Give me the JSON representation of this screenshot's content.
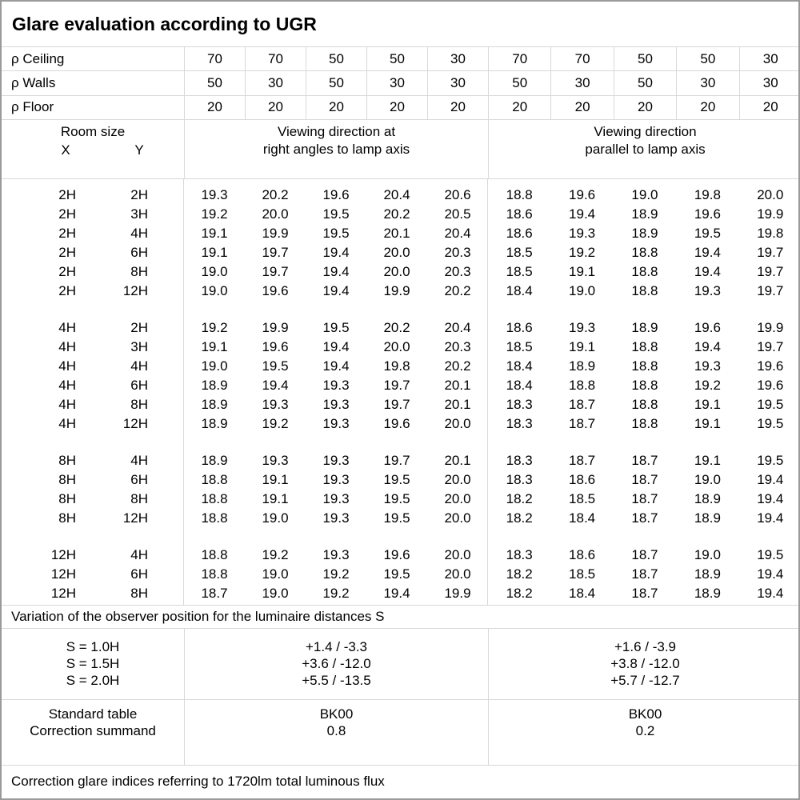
{
  "title": "Glare evaluation according to UGR",
  "reflectances": [
    {
      "label": "ρ Ceiling",
      "values": [
        "70",
        "70",
        "50",
        "50",
        "30",
        "70",
        "70",
        "50",
        "50",
        "30"
      ]
    },
    {
      "label": "ρ Walls",
      "values": [
        "50",
        "30",
        "50",
        "30",
        "30",
        "50",
        "30",
        "50",
        "30",
        "30"
      ]
    },
    {
      "label": "ρ Floor",
      "values": [
        "20",
        "20",
        "20",
        "20",
        "20",
        "20",
        "20",
        "20",
        "20",
        "20"
      ]
    }
  ],
  "header": {
    "room_size_label": "Room size",
    "x_label": "X",
    "y_label": "Y",
    "group_right_angles": {
      "line1": "Viewing direction at",
      "line2": "right angles to lamp axis"
    },
    "group_parallel": {
      "line1": "Viewing direction",
      "line2": "parallel to lamp axis"
    }
  },
  "ugr_table": {
    "type": "table",
    "blocks": [
      {
        "rows": [
          {
            "x": "2H",
            "y": "2H",
            "ra": [
              "19.3",
              "20.2",
              "19.6",
              "20.4",
              "20.6"
            ],
            "pa": [
              "18.8",
              "19.6",
              "19.0",
              "19.8",
              "20.0"
            ]
          },
          {
            "x": "2H",
            "y": "3H",
            "ra": [
              "19.2",
              "20.0",
              "19.5",
              "20.2",
              "20.5"
            ],
            "pa": [
              "18.6",
              "19.4",
              "18.9",
              "19.6",
              "19.9"
            ]
          },
          {
            "x": "2H",
            "y": "4H",
            "ra": [
              "19.1",
              "19.9",
              "19.5",
              "20.1",
              "20.4"
            ],
            "pa": [
              "18.6",
              "19.3",
              "18.9",
              "19.5",
              "19.8"
            ]
          },
          {
            "x": "2H",
            "y": "6H",
            "ra": [
              "19.1",
              "19.7",
              "19.4",
              "20.0",
              "20.3"
            ],
            "pa": [
              "18.5",
              "19.2",
              "18.8",
              "19.4",
              "19.7"
            ]
          },
          {
            "x": "2H",
            "y": "8H",
            "ra": [
              "19.0",
              "19.7",
              "19.4",
              "20.0",
              "20.3"
            ],
            "pa": [
              "18.5",
              "19.1",
              "18.8",
              "19.4",
              "19.7"
            ]
          },
          {
            "x": "2H",
            "y": "12H",
            "ra": [
              "19.0",
              "19.6",
              "19.4",
              "19.9",
              "20.2"
            ],
            "pa": [
              "18.4",
              "19.0",
              "18.8",
              "19.3",
              "19.7"
            ]
          }
        ]
      },
      {
        "rows": [
          {
            "x": "4H",
            "y": "2H",
            "ra": [
              "19.2",
              "19.9",
              "19.5",
              "20.2",
              "20.4"
            ],
            "pa": [
              "18.6",
              "19.3",
              "18.9",
              "19.6",
              "19.9"
            ]
          },
          {
            "x": "4H",
            "y": "3H",
            "ra": [
              "19.1",
              "19.6",
              "19.4",
              "20.0",
              "20.3"
            ],
            "pa": [
              "18.5",
              "19.1",
              "18.8",
              "19.4",
              "19.7"
            ]
          },
          {
            "x": "4H",
            "y": "4H",
            "ra": [
              "19.0",
              "19.5",
              "19.4",
              "19.8",
              "20.2"
            ],
            "pa": [
              "18.4",
              "18.9",
              "18.8",
              "19.3",
              "19.6"
            ]
          },
          {
            "x": "4H",
            "y": "6H",
            "ra": [
              "18.9",
              "19.4",
              "19.3",
              "19.7",
              "20.1"
            ],
            "pa": [
              "18.4",
              "18.8",
              "18.8",
              "19.2",
              "19.6"
            ]
          },
          {
            "x": "4H",
            "y": "8H",
            "ra": [
              "18.9",
              "19.3",
              "19.3",
              "19.7",
              "20.1"
            ],
            "pa": [
              "18.3",
              "18.7",
              "18.8",
              "19.1",
              "19.5"
            ]
          },
          {
            "x": "4H",
            "y": "12H",
            "ra": [
              "18.9",
              "19.2",
              "19.3",
              "19.6",
              "20.0"
            ],
            "pa": [
              "18.3",
              "18.7",
              "18.8",
              "19.1",
              "19.5"
            ]
          }
        ]
      },
      {
        "rows": [
          {
            "x": "8H",
            "y": "4H",
            "ra": [
              "18.9",
              "19.3",
              "19.3",
              "19.7",
              "20.1"
            ],
            "pa": [
              "18.3",
              "18.7",
              "18.7",
              "19.1",
              "19.5"
            ]
          },
          {
            "x": "8H",
            "y": "6H",
            "ra": [
              "18.8",
              "19.1",
              "19.3",
              "19.5",
              "20.0"
            ],
            "pa": [
              "18.3",
              "18.6",
              "18.7",
              "19.0",
              "19.4"
            ]
          },
          {
            "x": "8H",
            "y": "8H",
            "ra": [
              "18.8",
              "19.1",
              "19.3",
              "19.5",
              "20.0"
            ],
            "pa": [
              "18.2",
              "18.5",
              "18.7",
              "18.9",
              "19.4"
            ]
          },
          {
            "x": "8H",
            "y": "12H",
            "ra": [
              "18.8",
              "19.0",
              "19.3",
              "19.5",
              "20.0"
            ],
            "pa": [
              "18.2",
              "18.4",
              "18.7",
              "18.9",
              "19.4"
            ]
          }
        ]
      },
      {
        "rows": [
          {
            "x": "12H",
            "y": "4H",
            "ra": [
              "18.8",
              "19.2",
              "19.3",
              "19.6",
              "20.0"
            ],
            "pa": [
              "18.3",
              "18.6",
              "18.7",
              "19.0",
              "19.5"
            ]
          },
          {
            "x": "12H",
            "y": "6H",
            "ra": [
              "18.8",
              "19.0",
              "19.2",
              "19.5",
              "20.0"
            ],
            "pa": [
              "18.2",
              "18.5",
              "18.7",
              "18.9",
              "19.4"
            ]
          },
          {
            "x": "12H",
            "y": "8H",
            "ra": [
              "18.7",
              "19.0",
              "19.2",
              "19.4",
              "19.9"
            ],
            "pa": [
              "18.2",
              "18.4",
              "18.7",
              "18.9",
              "19.4"
            ]
          }
        ]
      }
    ]
  },
  "variation_note": "Variation of the observer position for the luminaire distances S",
  "variation": {
    "s_labels": [
      "S = 1.0H",
      "S = 1.5H",
      "S = 2.0H"
    ],
    "right_angles": [
      "+1.4 / -3.3",
      "+3.6 / -12.0",
      "+5.5 / -13.5"
    ],
    "parallel": [
      "+1.6 / -3.9",
      "+3.8 / -12.0",
      "+5.7 / -12.7"
    ]
  },
  "standard": {
    "row_labels": [
      "Standard table",
      "Correction summand"
    ],
    "right_angles": [
      "BK00",
      "0.8"
    ],
    "parallel": [
      "BK00",
      "0.2"
    ]
  },
  "footer": "Correction glare indices referring to 1720lm total luminous flux",
  "colors": {
    "grid": "#d9d9d9",
    "border": "#9a9a9a",
    "text": "#000000",
    "background": "#ffffff"
  }
}
